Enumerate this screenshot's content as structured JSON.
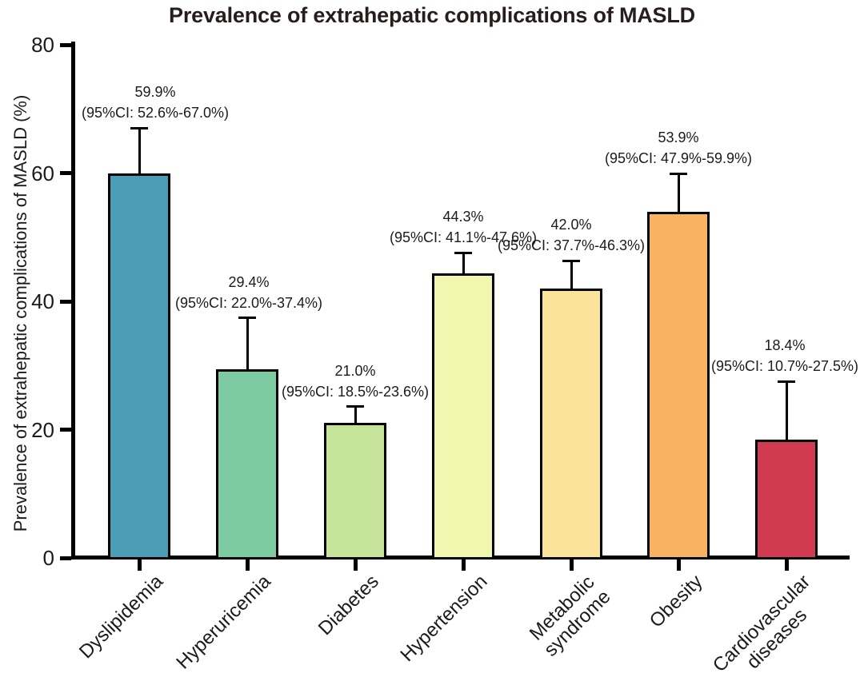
{
  "chart_data": {
    "type": "bar",
    "title": "Prevalence of extrahepatic complications of MASLD",
    "ylabel": "Prevalence of extrahepatic complications of MASLD (%)",
    "xlabel": "",
    "ylim": [
      0,
      80
    ],
    "ytick_values": [
      0,
      20,
      40,
      60,
      80
    ],
    "ytick_labels": [
      "0",
      "20",
      "40",
      "60",
      "80"
    ],
    "grid": false,
    "legend": "none",
    "error_bars": "upper-only",
    "categories": [
      "Dyslipidemia",
      "Hyperuricemia",
      "Diabetes",
      "Hypertension",
      "Metabolic\nsyndrome",
      "Obesity",
      "Cardiovascular\ndiseases"
    ],
    "values": [
      59.9,
      29.4,
      21.0,
      44.3,
      42.0,
      53.9,
      18.4
    ],
    "ci_lower": [
      52.6,
      22.0,
      18.5,
      41.1,
      37.7,
      47.9,
      10.7
    ],
    "ci_upper": [
      67.0,
      37.4,
      23.6,
      47.6,
      46.3,
      59.9,
      27.5
    ],
    "value_labels": [
      "59.9%",
      "29.4%",
      "21.0%",
      "44.3%",
      "42.0%",
      "53.9%",
      "18.4%"
    ],
    "ci_labels": [
      "(95%CI: 52.6%-67.0%)",
      "(95%CI: 22.0%-37.4%)",
      "(95%CI: 18.5%-23.6%)",
      "(95%CI: 41.1%-47.6%)",
      "(95%CI: 37.7%-46.3%)",
      "(95%CI: 47.9%-59.9%)",
      "(95%CI: 10.7%-27.5%)"
    ],
    "bar_colors": [
      "#4A9DB4",
      "#7FCBA1",
      "#C6E59B",
      "#F2F7B0",
      "#FBE39B",
      "#F9B261",
      "#D13B52"
    ],
    "annotation_x_offsets": [
      20,
      2,
      0,
      0,
      0,
      0,
      -2
    ]
  },
  "colors": {
    "title": "#281D1D",
    "text": "#1D1A18",
    "axis": "#000000",
    "bar_border": "#000000",
    "background": "#FFFFFF"
  }
}
